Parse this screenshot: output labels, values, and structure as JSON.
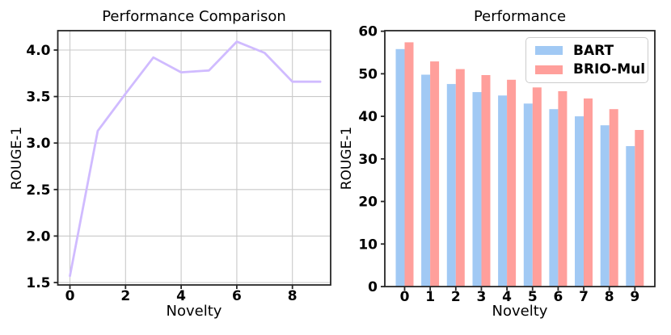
{
  "figure": {
    "background": "#ffffff",
    "text_color": "#000000",
    "spine_color": "#262626",
    "grid_color": "#c9c9c9"
  },
  "chart_data": [
    {
      "type": "line",
      "title": "Performance Comparison",
      "xlabel": "Novelty",
      "ylabel": "ROUGE-1",
      "x": [
        0,
        1,
        2,
        3,
        4,
        5,
        6,
        7,
        8,
        9
      ],
      "values": [
        1.57,
        3.13,
        3.53,
        3.92,
        3.76,
        3.78,
        4.09,
        3.97,
        3.66,
        3.66
      ],
      "xticks": [
        0,
        2,
        4,
        6,
        8
      ],
      "xtick_labels": [
        "0",
        "2",
        "4",
        "6",
        "8"
      ],
      "yticks": [
        1.5,
        2.0,
        2.5,
        3.0,
        3.5,
        4.0
      ],
      "ytick_labels": [
        "1.5",
        "2.0",
        "2.5",
        "3.0",
        "3.5",
        "4.0"
      ],
      "xlim": [
        -0.45,
        9.45
      ],
      "ylim": [
        1.48,
        4.21
      ],
      "grid": true,
      "legend": false,
      "line_color": "#d0bbff"
    },
    {
      "type": "bar",
      "title": "Performance",
      "xlabel": "Novelty",
      "ylabel": "ROUGE-1",
      "categories": [
        "0",
        "1",
        "2",
        "3",
        "4",
        "5",
        "6",
        "7",
        "8",
        "9"
      ],
      "series": [
        {
          "name": "BART",
          "color": "#a1c9f4",
          "values": [
            55.8,
            49.8,
            47.6,
            45.7,
            44.9,
            43.0,
            41.7,
            40.0,
            37.9,
            33.0
          ]
        },
        {
          "name": "BRIO-Mul",
          "color": "#ff9f9b",
          "values": [
            57.4,
            52.9,
            51.1,
            49.7,
            48.6,
            46.8,
            45.9,
            44.2,
            41.7,
            36.8
          ]
        }
      ],
      "yticks": [
        0,
        10,
        20,
        30,
        40,
        50,
        60
      ],
      "ytick_labels": [
        "0",
        "10",
        "20",
        "30",
        "40",
        "50",
        "60"
      ],
      "ylim": [
        0,
        60.4
      ],
      "grid": false,
      "legend": true,
      "legend_position": "upper right"
    }
  ]
}
